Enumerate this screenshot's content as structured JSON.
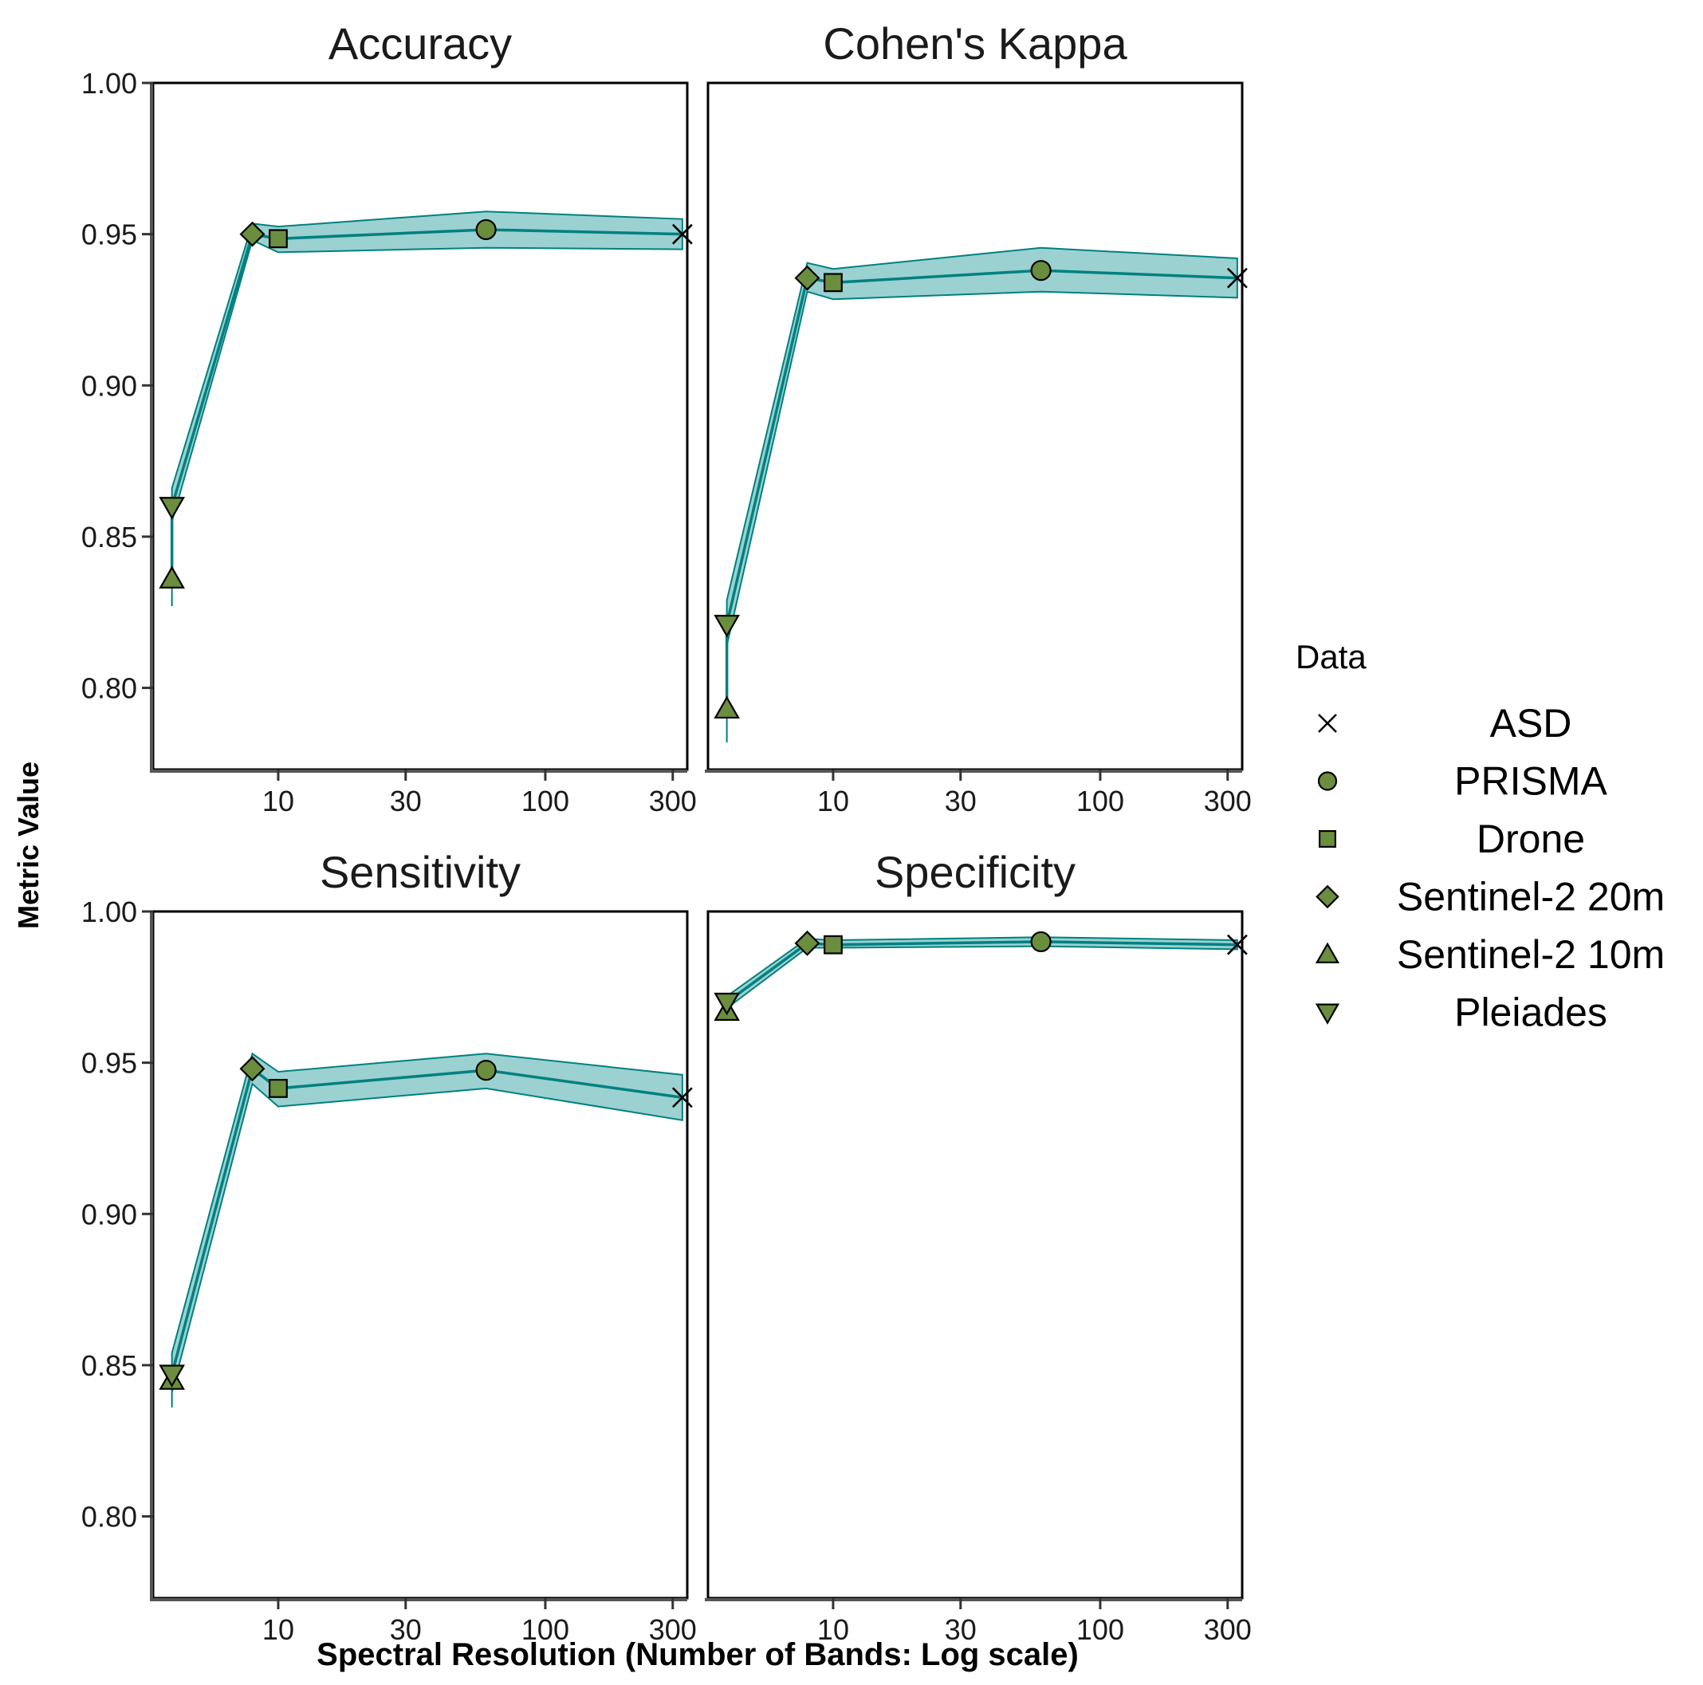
{
  "chart_data": {
    "type": "line",
    "facets": [
      "Accuracy",
      "Cohen's Kappa",
      "Sensitivity",
      "Specificity"
    ],
    "ylabel": "Metric Value",
    "xlabel": "Spectral Resolution (Number of Bands: Log scale)",
    "x_scale": "log10",
    "xlim": [
      3.4,
      340
    ],
    "ylim": [
      0.773,
      1.0
    ],
    "x_ticks": [
      10,
      30,
      100,
      300
    ],
    "y_ticks": [
      0.8,
      0.85,
      0.9,
      0.95,
      1.0
    ],
    "y_tick_labels": [
      "0.80",
      "0.85",
      "0.90",
      "0.95",
      "1.00"
    ],
    "line_color": "#008080",
    "ribbon_color": "#66b8b8",
    "marker_fill": "#6b8e3e",
    "legend": {
      "title": "Data",
      "items": [
        {
          "label": "ASD",
          "shape": "x-icon"
        },
        {
          "label": "PRISMA",
          "shape": "circle-icon"
        },
        {
          "label": "Drone",
          "shape": "square-icon"
        },
        {
          "label": "Sentinel-2 20m",
          "shape": "diamond-icon"
        },
        {
          "label": "Sentinel-2 10m",
          "shape": "triangle-up-icon"
        },
        {
          "label": "Pleiades",
          "shape": "triangle-down-icon"
        }
      ]
    },
    "x": {
      "ASD": 326,
      "PRISMA": 60,
      "Drone": 10,
      "Sentinel-2 20m": 8,
      "Sentinel-2 10m": 4,
      "Pleiades": 4
    },
    "series": [
      {
        "name": "Accuracy",
        "values": {
          "ASD": 0.95,
          "PRISMA": 0.9515,
          "Drone": 0.9485,
          "Sentinel-2 20m": 0.95,
          "Sentinel-2 10m": 0.836,
          "Pleiades": 0.86
        },
        "lower": {
          "ASD": 0.945,
          "PRISMA": 0.9455,
          "Drone": 0.944,
          "Sentinel-2 20m": 0.948,
          "Sentinel-2 10m": 0.827,
          "Pleiades": 0.855
        },
        "upper": {
          "ASD": 0.955,
          "PRISMA": 0.9575,
          "Drone": 0.9525,
          "Sentinel-2 20m": 0.9535,
          "Sentinel-2 10m": 0.845,
          "Pleiades": 0.866
        }
      },
      {
        "name": "Cohen's Kappa",
        "values": {
          "ASD": 0.9355,
          "PRISMA": 0.938,
          "Drone": 0.934,
          "Sentinel-2 20m": 0.9355,
          "Sentinel-2 10m": 0.793,
          "Pleiades": 0.821
        },
        "lower": {
          "ASD": 0.929,
          "PRISMA": 0.931,
          "Drone": 0.9285,
          "Sentinel-2 20m": 0.931,
          "Sentinel-2 10m": 0.782,
          "Pleiades": 0.814
        },
        "upper": {
          "ASD": 0.942,
          "PRISMA": 0.9455,
          "Drone": 0.9385,
          "Sentinel-2 20m": 0.9405,
          "Sentinel-2 10m": 0.803,
          "Pleiades": 0.829
        }
      },
      {
        "name": "Sensitivity",
        "values": {
          "ASD": 0.9385,
          "PRISMA": 0.9475,
          "Drone": 0.9415,
          "Sentinel-2 20m": 0.948,
          "Sentinel-2 10m": 0.845,
          "Pleiades": 0.847
        },
        "lower": {
          "ASD": 0.931,
          "PRISMA": 0.9415,
          "Drone": 0.9355,
          "Sentinel-2 20m": 0.943,
          "Sentinel-2 10m": 0.836,
          "Pleiades": 0.841
        },
        "upper": {
          "ASD": 0.946,
          "PRISMA": 0.953,
          "Drone": 0.947,
          "Sentinel-2 20m": 0.953,
          "Sentinel-2 10m": 0.853,
          "Pleiades": 0.854
        }
      },
      {
        "name": "Specificity",
        "values": {
          "ASD": 0.989,
          "PRISMA": 0.99,
          "Drone": 0.989,
          "Sentinel-2 20m": 0.9895,
          "Sentinel-2 10m": 0.967,
          "Pleiades": 0.97
        },
        "lower": {
          "ASD": 0.9875,
          "PRISMA": 0.9885,
          "Drone": 0.988,
          "Sentinel-2 20m": 0.988,
          "Sentinel-2 10m": 0.965,
          "Pleiades": 0.968
        },
        "upper": {
          "ASD": 0.9905,
          "PRISMA": 0.9915,
          "Drone": 0.9905,
          "Sentinel-2 20m": 0.991,
          "Sentinel-2 10m": 0.969,
          "Pleiades": 0.972
        }
      }
    ]
  }
}
